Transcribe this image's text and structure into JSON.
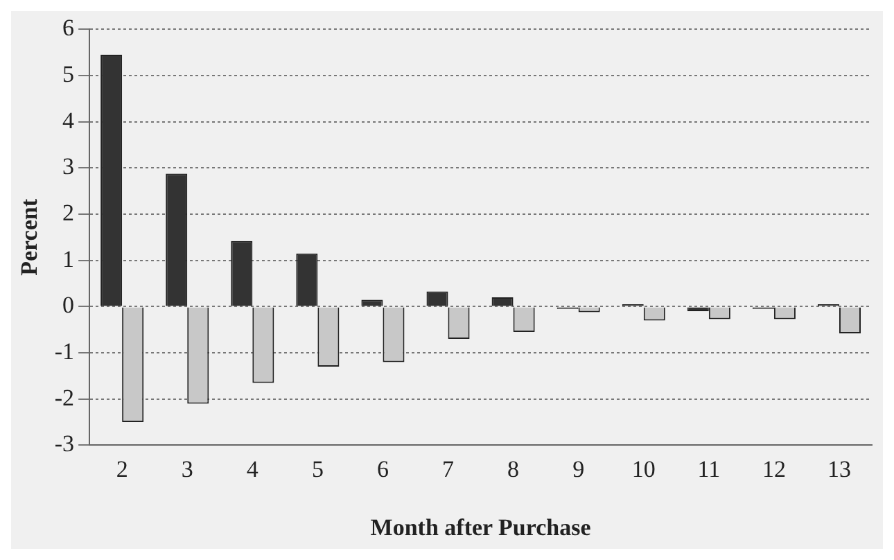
{
  "chart_data": {
    "type": "bar",
    "xlabel": "Month after Purchase",
    "ylabel": "Percent",
    "categories": [
      "2",
      "3",
      "4",
      "5",
      "6",
      "7",
      "8",
      "9",
      "10",
      "11",
      "12",
      "13"
    ],
    "series": [
      {
        "color": "#333333",
        "values": [
          5.45,
          2.88,
          1.42,
          1.15,
          0.15,
          0.33,
          0.2,
          -0.05,
          0.05,
          -0.1,
          -0.05,
          0.05
        ]
      },
      {
        "color": "#c8c8c8",
        "values": [
          -2.5,
          -2.1,
          -1.65,
          -1.3,
          -1.2,
          -0.7,
          -0.55,
          -0.12,
          -0.3,
          -0.27,
          -0.27,
          -0.58
        ]
      }
    ],
    "ylim": [
      -3,
      6
    ],
    "yticks": [
      -3,
      -2,
      -1,
      0,
      1,
      2,
      3,
      4,
      5,
      6
    ],
    "grid": "y",
    "legend": false
  }
}
